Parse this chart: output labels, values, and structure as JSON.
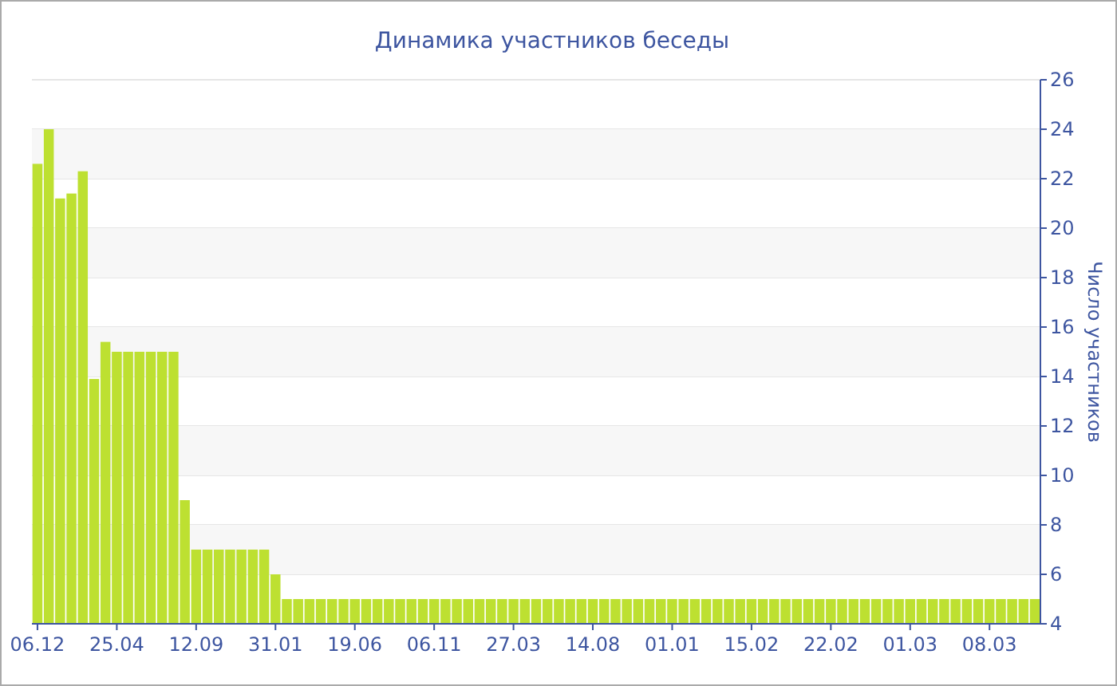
{
  "chart_data": {
    "type": "bar",
    "title": "Динамика участников беседы",
    "ylabel": "Число участников",
    "categories": [
      "06.12",
      null,
      null,
      null,
      null,
      null,
      null,
      "25.04",
      null,
      null,
      null,
      null,
      null,
      null,
      "12.09",
      null,
      null,
      null,
      null,
      null,
      null,
      "31.01",
      null,
      null,
      null,
      null,
      null,
      null,
      "19.06",
      null,
      null,
      null,
      null,
      null,
      null,
      "06.11",
      null,
      null,
      null,
      null,
      null,
      null,
      "27.03",
      null,
      null,
      null,
      null,
      null,
      null,
      "14.08",
      null,
      null,
      null,
      null,
      null,
      null,
      "01.01",
      null,
      null,
      null,
      null,
      null,
      null,
      "15.02",
      null,
      null,
      null,
      null,
      null,
      null,
      "22.02",
      null,
      null,
      null,
      null,
      null,
      null,
      "01.03",
      null,
      null,
      null,
      null,
      null,
      null,
      "08.03",
      null,
      null,
      null,
      null
    ],
    "values": [
      22.6,
      24,
      21.2,
      21.4,
      22.3,
      13.9,
      15.4,
      15,
      15,
      15,
      15,
      15,
      15,
      9,
      7,
      7,
      7,
      7,
      7,
      7,
      7,
      6,
      5,
      5,
      5,
      5,
      5,
      5,
      5,
      5,
      5,
      5,
      5,
      5,
      5,
      5,
      5,
      5,
      5,
      5,
      5,
      5,
      5,
      5,
      5,
      5,
      5,
      5,
      5,
      5,
      5,
      5,
      5,
      5,
      5,
      5,
      5,
      5,
      5,
      5,
      5,
      5,
      5,
      5,
      5,
      5,
      5,
      5,
      5,
      5,
      5,
      5,
      5,
      5,
      5,
      5,
      5,
      5,
      5,
      5,
      5,
      5,
      5,
      5,
      5,
      5,
      5,
      5,
      5
    ],
    "color": "#bde031",
    "ylim": [
      4,
      26
    ],
    "yticks": [
      4,
      6,
      8,
      10,
      12,
      14,
      16,
      18,
      20,
      22,
      24,
      26
    ],
    "grid": "y"
  }
}
